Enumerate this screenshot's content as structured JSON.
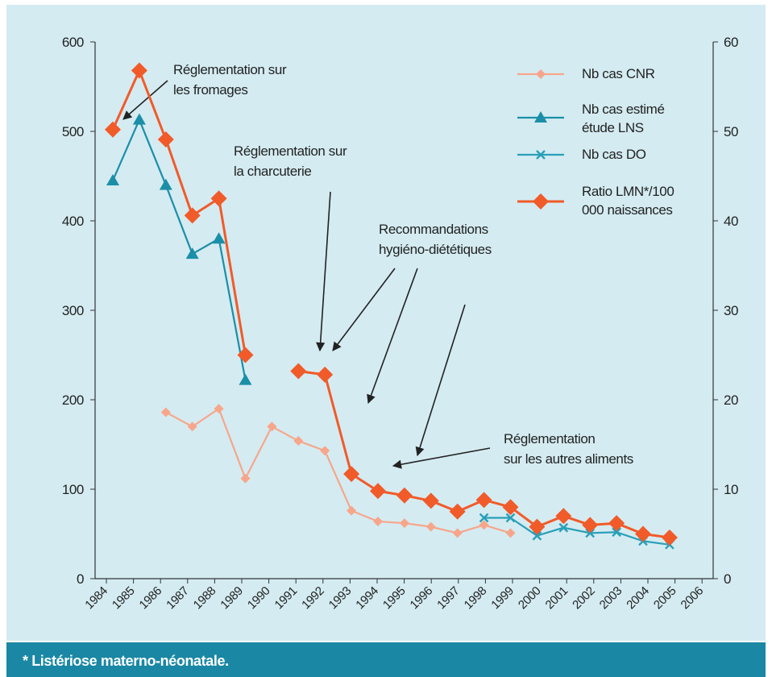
{
  "chart_data": {
    "type": "line",
    "footnote": "* Listériose materno-néonatale.",
    "categories": [
      "1984",
      "1985",
      "1986",
      "1987",
      "1988",
      "1989",
      "1990",
      "1991",
      "1992",
      "1993",
      "1994",
      "1995",
      "1996",
      "1997",
      "1998",
      "1999",
      "2000",
      "2001",
      "2002",
      "2003",
      "2004",
      "2005",
      "2006"
    ],
    "ylim": [
      0,
      600
    ],
    "yticks": [
      0,
      100,
      200,
      300,
      400,
      500,
      600
    ],
    "y2lim": [
      0,
      60
    ],
    "y2ticks": [
      0,
      10,
      20,
      30,
      40,
      50,
      60
    ],
    "series": [
      {
        "name": "Nb cas CNR",
        "color": "#f7a68c",
        "marker": "diamond",
        "values": [
          null,
          null,
          186,
          170,
          190,
          112,
          170,
          154,
          143,
          76,
          64,
          62,
          58,
          51,
          60,
          51,
          null,
          null,
          null,
          null,
          null,
          null,
          null
        ]
      },
      {
        "name": "Nb cas estimé étude LNS",
        "color": "#1b8ea8",
        "marker": "triangle",
        "values": [
          445,
          513,
          440,
          363,
          380,
          222,
          null,
          null,
          null,
          null,
          null,
          null,
          null,
          null,
          null,
          null,
          null,
          null,
          null,
          null,
          null,
          null,
          null
        ]
      },
      {
        "name": "Nb cas DO",
        "color": "#2a9fb8",
        "marker": "cross",
        "values": [
          null,
          null,
          null,
          null,
          null,
          null,
          null,
          null,
          null,
          null,
          null,
          null,
          null,
          null,
          68,
          68,
          48,
          57,
          51,
          52,
          42,
          38,
          null
        ]
      },
      {
        "name": "Ratio LMN*/100 000 naissances",
        "color": "#f15a29",
        "marker": "bigdiamond",
        "axis": "y2",
        "values": [
          50.2,
          56.8,
          49.1,
          40.6,
          42.5,
          25.0,
          null,
          23.2,
          22.8,
          11.7,
          9.8,
          9.3,
          8.7,
          7.5,
          8.8,
          8.0,
          5.8,
          7.0,
          6.0,
          6.2,
          5.0,
          4.6,
          null
        ]
      }
    ],
    "annotations": [
      {
        "lines": [
          "Réglementation sur",
          "les fromages"
        ]
      },
      {
        "lines": [
          "Réglementation sur",
          "la charcuterie"
        ]
      },
      {
        "lines": [
          "Recommandations",
          "hygiéno-diététiques"
        ]
      },
      {
        "lines": [
          "Réglementation",
          "sur les autres aliments"
        ]
      }
    ]
  }
}
